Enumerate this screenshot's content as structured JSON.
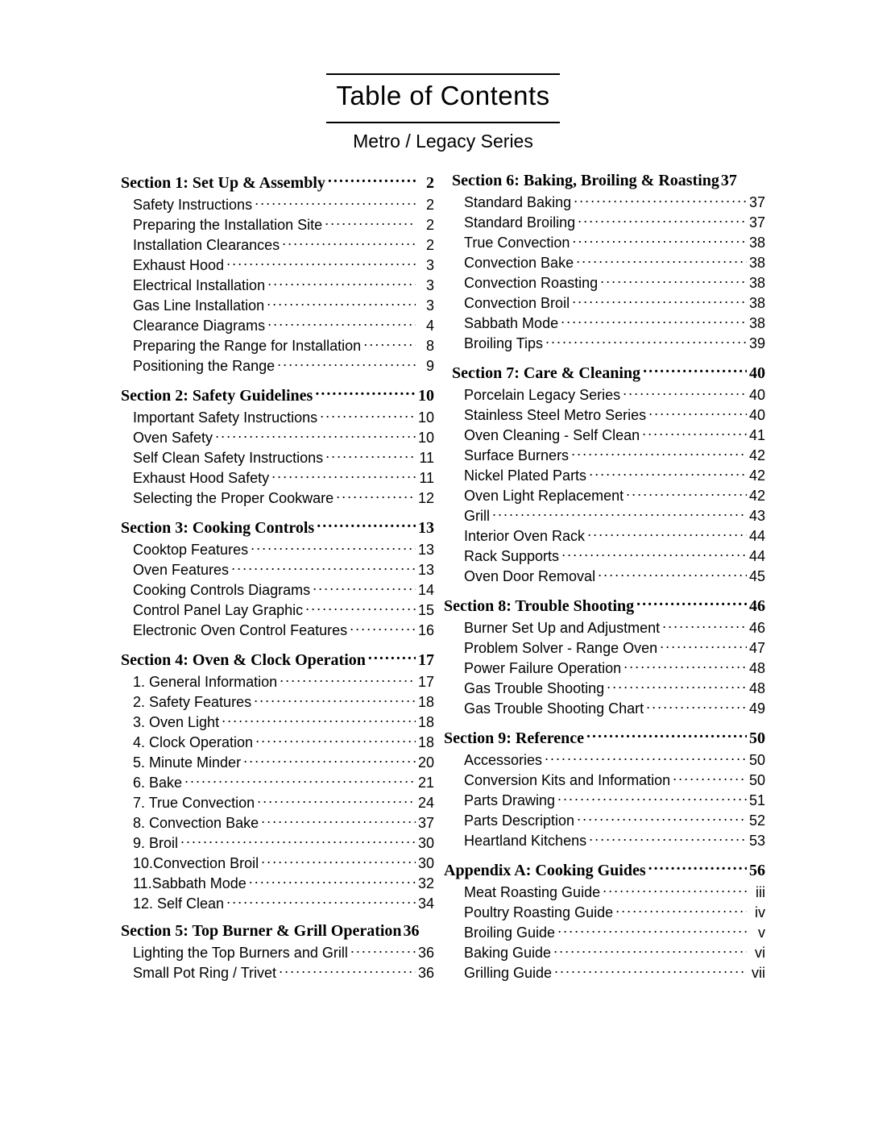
{
  "title": "Table of Contents",
  "subtitle": "Metro / Legacy Series",
  "colors": {
    "text": "#000000",
    "background": "#ffffff",
    "rule": "#000000"
  },
  "fontSizes": {
    "title": 33,
    "subtitle": 23,
    "sectionHead": 20,
    "entry": 18
  },
  "left": [
    {
      "head": "Section 1: Set Up & Assembly",
      "page": "2",
      "items": [
        {
          "label": "Safety Instructions",
          "page": "2"
        },
        {
          "label": "Preparing the Installation Site",
          "page": "2"
        },
        {
          "label": "Installation Clearances",
          "page": "2"
        },
        {
          "label": "Exhaust Hood",
          "page": "3"
        },
        {
          "label": "Electrical Installation",
          "page": "3"
        },
        {
          "label": "Gas Line Installation",
          "page": "3"
        },
        {
          "label": "Clearance Diagrams",
          "page": "4"
        },
        {
          "label": "Preparing the Range for Installation",
          "page": "8"
        },
        {
          "label": "Positioning the Range",
          "page": "9"
        }
      ]
    },
    {
      "head": "Section 2: Safety Guidelines",
      "page": "10",
      "items": [
        {
          "label": "Important Safety Instructions",
          "page": "10"
        },
        {
          "label": "Oven Safety",
          "page": "10"
        },
        {
          "label": "Self Clean Safety Instructions",
          "page": "11"
        },
        {
          "label": "Exhaust Hood Safety",
          "page": "11"
        },
        {
          "label": "Selecting the Proper Cookware",
          "page": "12"
        }
      ]
    },
    {
      "head": "Section 3: Cooking Controls",
      "page": "13",
      "items": [
        {
          "label": "Cooktop Features",
          "page": "13"
        },
        {
          "label": "Oven Features",
          "page": "13"
        },
        {
          "label": "Cooking Controls Diagrams",
          "page": "14"
        },
        {
          "label": "Control Panel Lay Graphic",
          "page": "15"
        },
        {
          "label": "Electronic Oven Control Features",
          "page": "16"
        }
      ]
    },
    {
      "head": "Section 4: Oven & Clock Operation",
      "page": "17",
      "items": [
        {
          "label": "1. General Information",
          "page": "17"
        },
        {
          "label": "2. Safety Features",
          "page": "18"
        },
        {
          "label": "3. Oven Light",
          "page": "18"
        },
        {
          "label": "4. Clock Operation",
          "page": "18"
        },
        {
          "label": "5. Minute Minder",
          "page": "20"
        },
        {
          "label": "6. Bake",
          "page": "21"
        },
        {
          "label": "7. True Convection",
          "page": "24"
        },
        {
          "label": "8. Convection Bake",
          "page": "37"
        },
        {
          "label": "9. Broil",
          "page": "30"
        },
        {
          "label": "10.Convection Broil",
          "page": "30"
        },
        {
          "label": "11.Sabbath Mode",
          "page": "32"
        },
        {
          "label": "12. Self Clean",
          "page": "34"
        }
      ]
    },
    {
      "head": "Section 5: Top Burner & Grill Operation",
      "page": "36",
      "noLeaders": true,
      "items": [
        {
          "label": "Lighting the Top Burners and Grill",
          "page": "36"
        },
        {
          "label": "Small Pot Ring / Trivet",
          "page": "36"
        }
      ]
    }
  ],
  "right": [
    {
      "head": "Section 6: Baking, Broiling & Roasting",
      "page": "37",
      "noLeaders": true,
      "items": [
        {
          "label": "Standard Baking",
          "page": "37"
        },
        {
          "label": "Standard Broiling",
          "page": "37"
        },
        {
          "label": "True Convection",
          "page": "38"
        },
        {
          "label": "Convection Bake",
          "page": "38"
        },
        {
          "label": "Convection Roasting",
          "page": "38"
        },
        {
          "label": "Convection Broil",
          "page": "38"
        },
        {
          "label": "Sabbath Mode",
          "page": "38"
        },
        {
          "label": "Broiling Tips",
          "page": "39"
        }
      ]
    },
    {
      "head": "Section 7: Care & Cleaning",
      "page": "40",
      "items": [
        {
          "label": "Porcelain   Legacy Series",
          "page": "40"
        },
        {
          "label": "Stainless Steel   Metro Series",
          "page": "40"
        },
        {
          "label": "Oven Cleaning - Self Clean",
          "page": "41"
        },
        {
          "label": "Surface Burners",
          "page": "42"
        },
        {
          "label": "Nickel Plated Parts",
          "page": "42"
        },
        {
          "label": "Oven Light Replacement",
          "page": "42"
        },
        {
          "label": "Grill",
          "page": "43"
        },
        {
          "label": "Interior Oven Rack",
          "page": "44"
        },
        {
          "label": "Rack Supports",
          "page": "44"
        },
        {
          "label": "Oven Door Removal",
          "page": "45"
        }
      ]
    },
    {
      "head": "Section 8: Trouble Shooting",
      "page": "46",
      "headMarginLeft": -10,
      "items": [
        {
          "label": "Burner Set Up and Adjustment",
          "page": "46"
        },
        {
          "label": "Problem Solver - Range Oven",
          "page": "47"
        },
        {
          "label": "Power Failure Operation",
          "page": "48"
        },
        {
          "label": "Gas Trouble Shooting",
          "page": "48"
        },
        {
          "label": "Gas Trouble Shooting Chart",
          "page": "49"
        }
      ]
    },
    {
      "head": "Section 9: Reference",
      "page": "50",
      "headMarginLeft": -10,
      "items": [
        {
          "label": "Accessories",
          "page": "50"
        },
        {
          "label": "Conversion Kits and Information",
          "page": "50"
        },
        {
          "label": "Parts Drawing",
          "page": "51"
        },
        {
          "label": "Parts Description",
          "page": "52"
        },
        {
          "label": "Heartland Kitchens",
          "page": "53"
        }
      ]
    },
    {
      "head": "Appendix A: Cooking Guides",
      "page": "56",
      "headMarginLeft": -10,
      "items": [
        {
          "label": "Meat Roasting Guide",
          "page": "iii"
        },
        {
          "label": "Poultry Roasting Guide",
          "page": "iv"
        },
        {
          "label": "Broiling Guide",
          "page": "v"
        },
        {
          "label": "Baking Guide",
          "page": "vi"
        },
        {
          "label": "Grilling Guide",
          "page": "vii"
        }
      ]
    }
  ]
}
